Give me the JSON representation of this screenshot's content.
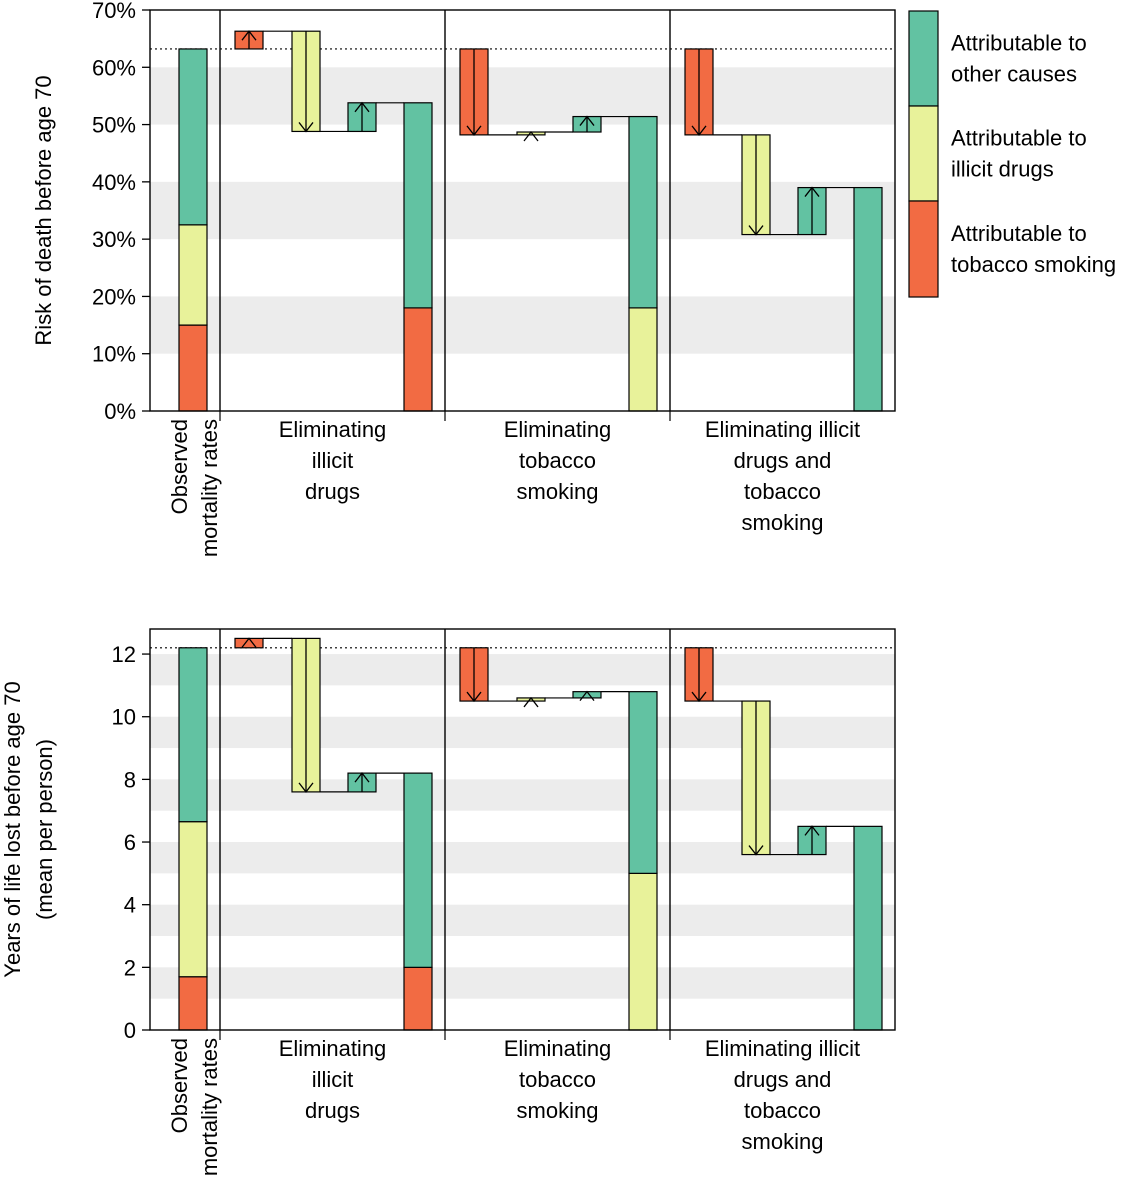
{
  "colors": {
    "tobacco": "#f26b43",
    "drugs": "#e8f29a",
    "other": "#62c2a2",
    "band": "#ececec",
    "stroke": "#000000"
  },
  "legend": {
    "items": [
      {
        "key": "other",
        "label_lines": [
          "Attributable to",
          "other causes"
        ]
      },
      {
        "key": "drugs",
        "label_lines": [
          "Attributable to",
          "illicit drugs"
        ]
      },
      {
        "key": "tobacco",
        "label_lines": [
          "Attributable to",
          "tobacco smoking"
        ]
      }
    ]
  },
  "chart_data": [
    {
      "type": "bar",
      "id": "risk",
      "ylabel_lines": [
        "Risk of death before age 70"
      ],
      "ylim": [
        0,
        70
      ],
      "yticks": [
        0,
        10,
        20,
        30,
        40,
        50,
        60,
        70
      ],
      "ytick_labels": [
        "0%",
        "10%",
        "20%",
        "30%",
        "40%",
        "50%",
        "60%",
        "70%"
      ],
      "bands": [
        [
          10,
          20
        ],
        [
          30,
          40
        ],
        [
          50,
          60
        ]
      ],
      "reference_line": 63.2,
      "observed": {
        "label_lines": [
          "Observed",
          "mortality rates"
        ],
        "stack": {
          "tobacco": 15.0,
          "drugs": 17.5,
          "other": 30.7
        }
      },
      "scenarios": [
        {
          "label_lines": [
            "Eliminating",
            "illicit",
            "drugs"
          ],
          "steps": [
            {
              "cause": "tobacco",
              "from": 63.2,
              "to": 66.3
            },
            {
              "cause": "drugs",
              "from": 66.3,
              "to": 48.8
            },
            {
              "cause": "other",
              "from": 48.8,
              "to": 53.8
            }
          ],
          "final_stack": {
            "tobacco": 18.0,
            "other": 35.8
          }
        },
        {
          "label_lines": [
            "Eliminating",
            "tobacco",
            "smoking"
          ],
          "steps": [
            {
              "cause": "tobacco",
              "from": 63.2,
              "to": 48.2
            },
            {
              "cause": "drugs",
              "from": 48.2,
              "to": 48.7
            },
            {
              "cause": "other",
              "from": 48.7,
              "to": 51.4
            }
          ],
          "final_stack": {
            "drugs": 18.0,
            "other": 33.4
          }
        },
        {
          "label_lines": [
            "Eliminating illicit",
            "drugs and",
            "tobacco",
            "smoking"
          ],
          "steps": [
            {
              "cause": "tobacco",
              "from": 63.2,
              "to": 48.2
            },
            {
              "cause": "drugs",
              "from": 48.2,
              "to": 30.8
            },
            {
              "cause": "other",
              "from": 30.8,
              "to": 39.0
            }
          ],
          "final_stack": {
            "other": 39.0
          }
        }
      ]
    },
    {
      "type": "bar",
      "id": "years",
      "ylabel_lines": [
        "Years of life lost before age 70",
        "(mean per person)"
      ],
      "ylim": [
        0,
        12.8
      ],
      "yticks": [
        0,
        2,
        4,
        6,
        8,
        10,
        12
      ],
      "ytick_labels": [
        "0",
        "2",
        "4",
        "6",
        "8",
        "10",
        "12"
      ],
      "bands": [
        [
          1,
          2
        ],
        [
          3,
          4
        ],
        [
          5,
          6
        ],
        [
          7,
          8
        ],
        [
          9,
          10
        ],
        [
          11,
          12
        ]
      ],
      "reference_line": 12.2,
      "observed": {
        "label_lines": [
          "Observed",
          "mortality rates"
        ],
        "stack": {
          "tobacco": 1.7,
          "drugs": 4.95,
          "other": 5.55
        }
      },
      "scenarios": [
        {
          "label_lines": [
            "Eliminating",
            "illicit",
            "drugs"
          ],
          "steps": [
            {
              "cause": "tobacco",
              "from": 12.2,
              "to": 12.5
            },
            {
              "cause": "drugs",
              "from": 12.5,
              "to": 7.6
            },
            {
              "cause": "other",
              "from": 7.6,
              "to": 8.2
            }
          ],
          "final_stack": {
            "tobacco": 2.0,
            "other": 6.2
          }
        },
        {
          "label_lines": [
            "Eliminating",
            "tobacco",
            "smoking"
          ],
          "steps": [
            {
              "cause": "tobacco",
              "from": 12.2,
              "to": 10.5
            },
            {
              "cause": "drugs",
              "from": 10.5,
              "to": 10.6
            },
            {
              "cause": "other",
              "from": 10.6,
              "to": 10.8
            }
          ],
          "final_stack": {
            "drugs": 5.0,
            "other": 5.8
          }
        },
        {
          "label_lines": [
            "Eliminating illicit",
            "drugs and",
            "tobacco",
            "smoking"
          ],
          "steps": [
            {
              "cause": "tobacco",
              "from": 12.2,
              "to": 10.5
            },
            {
              "cause": "drugs",
              "from": 10.5,
              "to": 5.6
            },
            {
              "cause": "other",
              "from": 5.6,
              "to": 6.5
            }
          ],
          "final_stack": {
            "other": 6.5
          }
        }
      ]
    }
  ]
}
